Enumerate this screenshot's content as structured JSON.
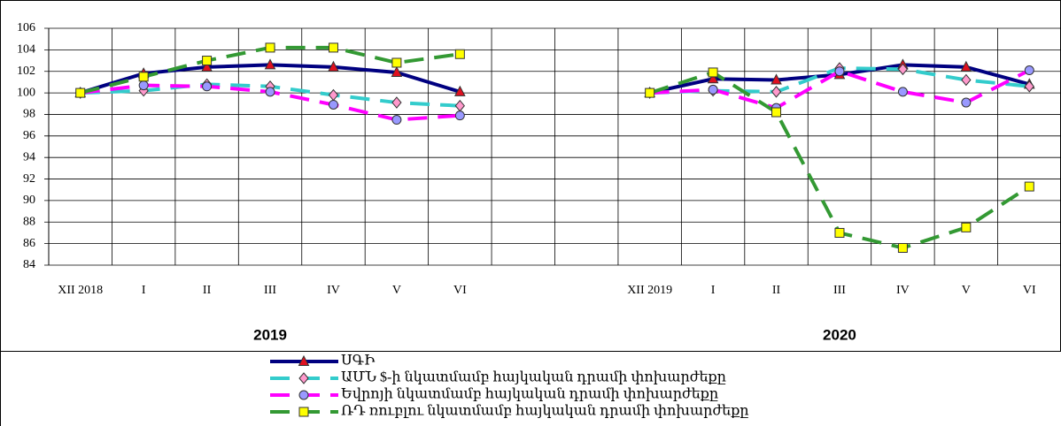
{
  "chart_data": {
    "type": "line",
    "categories": [
      "XII 2018",
      "I",
      "II",
      "III",
      "IV",
      "V",
      "VI",
      null,
      null,
      "XII 2019",
      "I",
      "II",
      "III",
      "IV",
      "V",
      "VI"
    ],
    "group_labels": [
      "2019",
      "2020"
    ],
    "ylim": [
      84,
      106
    ],
    "yticks": [
      84,
      86,
      88,
      90,
      92,
      94,
      96,
      98,
      100,
      102,
      104,
      106
    ],
    "grid": true,
    "legend": "bottom",
    "series": [
      {
        "name": "ՍԳԻ",
        "color": "#000080",
        "dash": false,
        "marker": "triangle",
        "marker_color": "#e01020",
        "values": [
          100,
          101.8,
          102.4,
          102.6,
          102.4,
          101.9,
          100.1,
          null,
          null,
          100,
          101.3,
          101.2,
          101.7,
          102.6,
          102.4,
          100.8
        ]
      },
      {
        "name": "ԱՄՆ $-ի նկատմամբ հայկական դրամի փոխարժեքը",
        "color": "#33cccc",
        "dash": true,
        "marker": "diamond",
        "marker_color": "#ff99cc",
        "values": [
          100,
          100.2,
          100.8,
          100.6,
          99.8,
          99.1,
          98.8,
          null,
          null,
          100,
          100.2,
          100.1,
          102.3,
          102.2,
          101.2,
          100.6
        ]
      },
      {
        "name": "Եվրոյի նկատմամբ հայկական դրամի փոխարժեքը",
        "color": "#ff00ff",
        "dash": true,
        "marker": "circle",
        "marker_color": "#9999ff",
        "values": [
          100,
          100.7,
          100.6,
          100.1,
          98.9,
          97.5,
          97.9,
          null,
          null,
          100,
          100.3,
          98.6,
          102,
          100.1,
          99.1,
          102.1
        ]
      },
      {
        "name": "ՌԴ ռուբլու նկատմամբ հայկական դրամի  փոխարժեքը",
        "color": "#339933",
        "dash": true,
        "marker": "square",
        "marker_color": "#ffff00",
        "values": [
          100,
          101.5,
          103,
          104.2,
          104.2,
          102.8,
          103.6,
          null,
          null,
          100,
          101.9,
          98.2,
          87,
          85.6,
          87.5,
          91.3
        ]
      }
    ]
  }
}
